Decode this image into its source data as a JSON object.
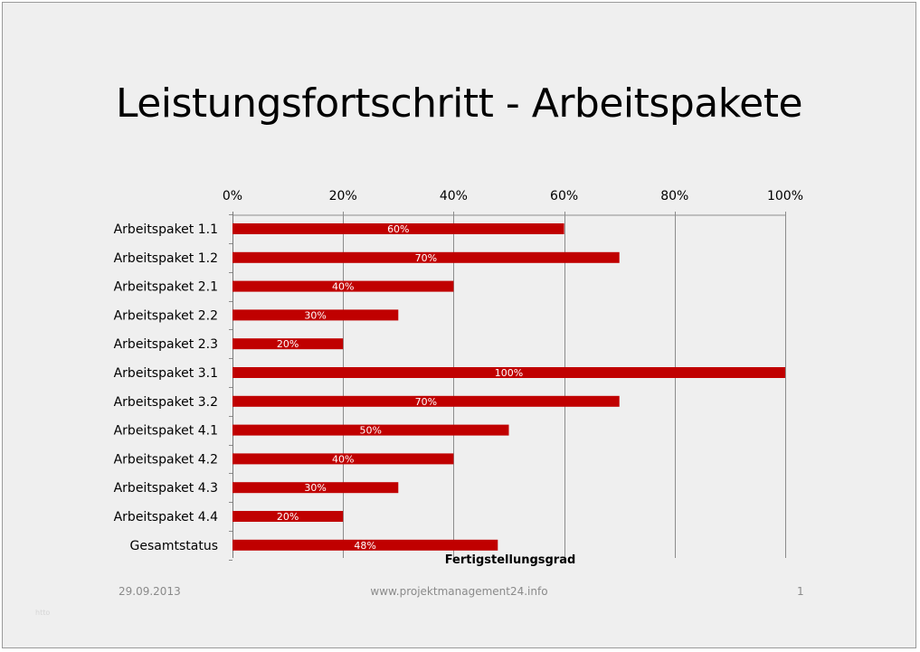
{
  "slide": {
    "title": "Leistungsfortschritt - Arbeitspakete",
    "footer_date": "29.09.2013",
    "footer_url": "www.projektmanagement24.info",
    "footer_page": "1",
    "watermark": "htto",
    "bar_color": "#c00000"
  },
  "chart_data": {
    "type": "bar",
    "orientation": "horizontal",
    "categories": [
      "Arbeitspaket 1.1",
      "Arbeitspaket 1.2",
      "Arbeitspaket 2.1",
      "Arbeitspaket 2.2",
      "Arbeitspaket 2.3",
      "Arbeitspaket 3.1",
      "Arbeitspaket 3.2",
      "Arbeitspaket 4.1",
      "Arbeitspaket 4.2",
      "Arbeitspaket 4.3",
      "Arbeitspaket 4.4",
      "Gesamtstatus"
    ],
    "values": [
      60,
      70,
      40,
      30,
      20,
      100,
      70,
      50,
      40,
      30,
      20,
      48
    ],
    "data_labels": [
      "60%",
      "70%",
      "40%",
      "30%",
      "20%",
      "100%",
      "70%",
      "50%",
      "40%",
      "30%",
      "20%",
      "48%"
    ],
    "xlim": [
      0,
      100
    ],
    "x_ticks": [
      "0%",
      "20%",
      "40%",
      "60%",
      "80%",
      "100%"
    ],
    "x_axis_position": "top",
    "xlabel": "Fertigstellungsgrad",
    "grid": true,
    "legend": "none"
  }
}
